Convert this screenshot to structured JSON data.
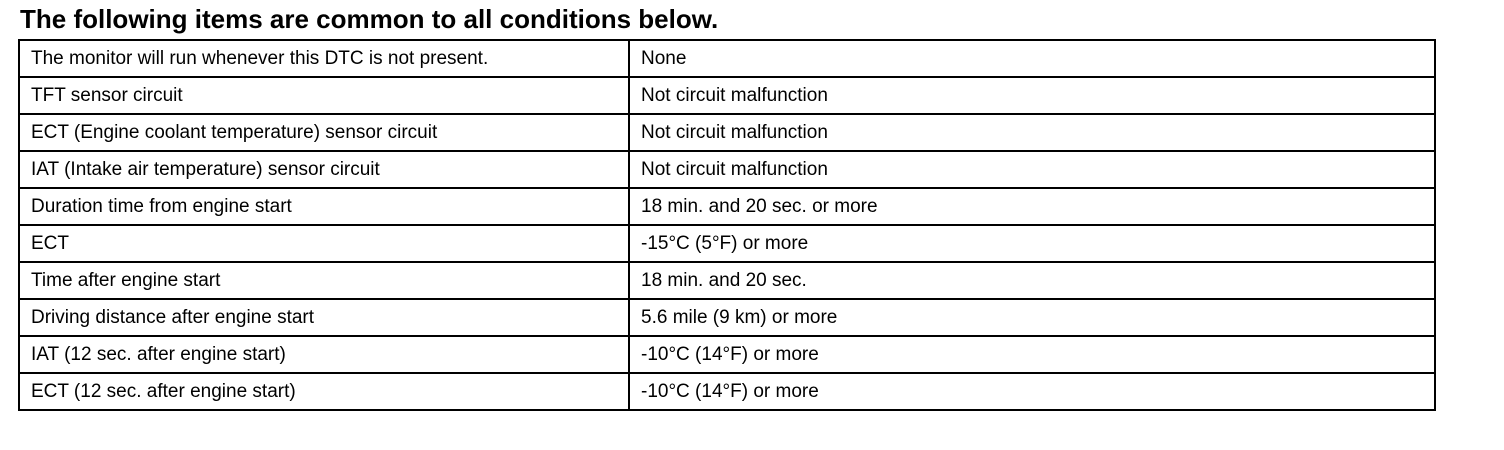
{
  "header": {
    "title": "The following items are common to all conditions below."
  },
  "table": {
    "rows": [
      [
        "The monitor will run whenever this DTC is not present.",
        "None"
      ],
      [
        "TFT sensor circuit",
        "Not circuit malfunction"
      ],
      [
        "ECT (Engine coolant temperature) sensor circuit",
        "Not circuit malfunction"
      ],
      [
        "IAT (Intake air temperature) sensor circuit",
        "Not circuit malfunction"
      ],
      [
        "Duration time from engine start",
        "18 min. and 20 sec. or more"
      ],
      [
        "ECT",
        "-15°C (5°F) or more"
      ],
      [
        "Time after engine start",
        "18 min. and 20 sec."
      ],
      [
        "Driving distance after engine start",
        "5.6 mile (9 km) or more"
      ],
      [
        "IAT (12 sec. after engine start)",
        "-10°C (14°F) or more"
      ],
      [
        "ECT (12 sec. after engine start)",
        "-10°C (14°F) or more"
      ]
    ]
  }
}
